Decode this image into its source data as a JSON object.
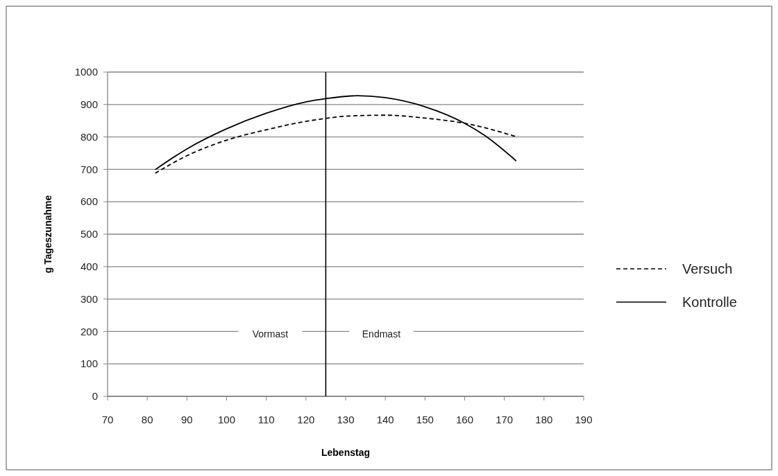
{
  "chart_data": {
    "type": "line",
    "xlabel": "Lebenstag",
    "ylabel": "g Tageszunahme",
    "xlim": [
      70,
      190
    ],
    "xticks": [
      70,
      80,
      90,
      100,
      110,
      120,
      130,
      140,
      150,
      160,
      170,
      180,
      190
    ],
    "ylim": [
      0,
      1000
    ],
    "yticks": [
      0,
      100,
      200,
      300,
      400,
      500,
      600,
      700,
      800,
      900,
      1000
    ],
    "grid": "y",
    "legend": "right",
    "marker": "none",
    "series": [
      {
        "name": "Versuch",
        "color": "#000000",
        "line_style": "dashed",
        "x": [
          82,
          90,
          100,
          110,
          120,
          125,
          130,
          140,
          150,
          160,
          173
        ],
        "values": [
          688,
          742,
          790,
          822,
          848,
          857,
          864,
          867,
          858,
          842,
          801
        ]
      },
      {
        "name": "Kontrolle",
        "color": "#000000",
        "line_style": "solid",
        "x": [
          82,
          90,
          100,
          110,
          120,
          125,
          133,
          140,
          150,
          160,
          165,
          173
        ],
        "values": [
          699,
          763,
          825,
          873,
          908,
          918,
          927,
          921,
          893,
          842,
          805,
          726
        ]
      }
    ],
    "ref_lines": [
      {
        "axis": "x",
        "value": 125,
        "color": "#000000"
      }
    ],
    "annotations": [
      "Vormast",
      "Endmast"
    ]
  }
}
